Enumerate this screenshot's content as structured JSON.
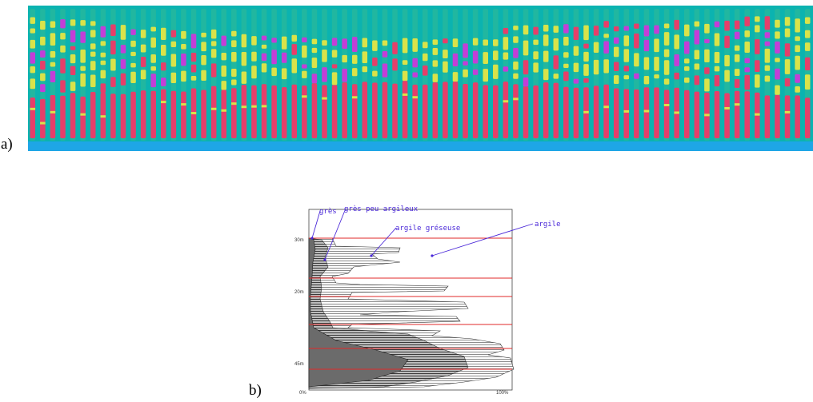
{
  "labels": {
    "a": "a)",
    "b": "b)"
  },
  "panel_a": {
    "colors": {
      "background": "#0bb3b0",
      "bottom_band": "#1ea6e6",
      "column_base": "#21b7a0",
      "red": "#e53f6a",
      "yellow": "#d9e34a",
      "magenta": "#c23fd7"
    },
    "column_count": 78
  },
  "panel_b": {
    "lithology_labels": [
      "grès",
      "grès peu argileux",
      "argile gréseuse",
      "argile"
    ],
    "depth_labels": [
      "30m",
      "20m",
      "45m"
    ],
    "axis_labels": {
      "left": "0%",
      "right": "100%"
    },
    "colors": {
      "annotation": "#4a28d8",
      "boundary": "#e0282a",
      "frame": "#444444",
      "hatch_fill": "#555555"
    }
  }
}
